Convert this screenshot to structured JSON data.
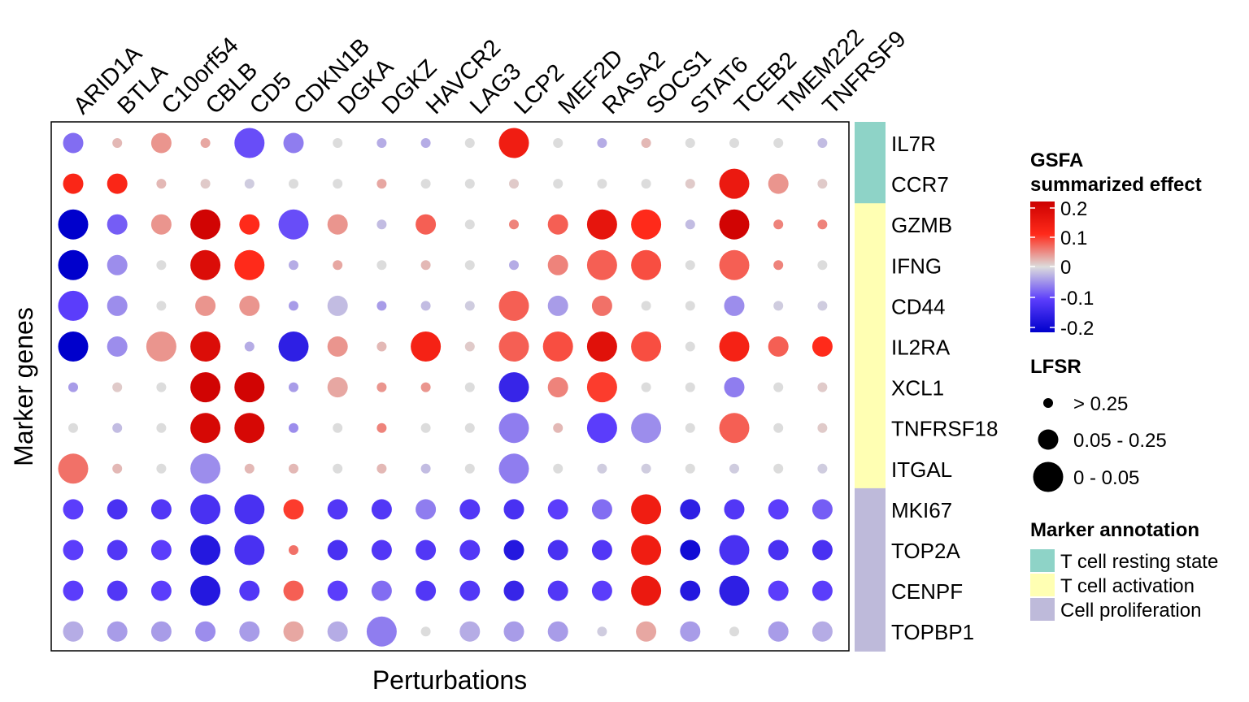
{
  "chart_data": {
    "type": "dot-heatmap",
    "xlabel": "Perturbations",
    "ylabel": "Marker genes",
    "perturbations": [
      "ARID1A",
      "BTLA",
      "C10orf54",
      "CBLB",
      "CD5",
      "CDKN1B",
      "DGKA",
      "DGKZ",
      "HAVCR2",
      "LAG3",
      "LCP2",
      "MEF2D",
      "RASA2",
      "SOCS1",
      "STAT6",
      "TCEB2",
      "TMEM222",
      "TNFRSF9"
    ],
    "marker_genes": [
      "IL7R",
      "CCR7",
      "GZMB",
      "IFNG",
      "CD44",
      "IL2RA",
      "XCL1",
      "TNFRSF18",
      "ITGAL",
      "MKI67",
      "TOP2A",
      "CENPF",
      "TOPBP1"
    ],
    "marker_annotation": [
      "T cell resting state",
      "T cell resting state",
      "T cell activation",
      "T cell activation",
      "T cell activation",
      "T cell activation",
      "T cell activation",
      "T cell activation",
      "T cell activation",
      "Cell proliferation",
      "Cell proliferation",
      "Cell proliferation",
      "Cell proliferation"
    ],
    "effect": [
      [
        -0.07,
        0.02,
        0.04,
        0.03,
        -0.09,
        -0.06,
        0,
        -0.03,
        -0.03,
        0,
        0.13,
        0,
        -0.03,
        0.02,
        0,
        0,
        0,
        -0.02
      ],
      [
        0.11,
        0.11,
        0.02,
        0.01,
        -0.01,
        0,
        0,
        0.03,
        0,
        0,
        0.01,
        0,
        0,
        0,
        0.01,
        0.14,
        0.04,
        0.01
      ],
      [
        -0.2,
        -0.08,
        0.04,
        0.19,
        0.1,
        -0.09,
        0.04,
        -0.02,
        0.07,
        0,
        0.05,
        0.07,
        0.15,
        0.1,
        -0.02,
        0.19,
        0.05,
        0.05
      ],
      [
        -0.2,
        -0.05,
        0,
        0.17,
        0.1,
        -0.03,
        0.03,
        0,
        0.02,
        0,
        -0.03,
        0.05,
        0.07,
        0.08,
        0,
        0.07,
        0.05,
        0
      ],
      [
        -0.1,
        -0.05,
        0,
        0.04,
        0.04,
        -0.04,
        -0.02,
        -0.04,
        -0.02,
        -0.01,
        0.07,
        -0.04,
        0.06,
        0,
        0,
        -0.05,
        -0.01,
        -0.01
      ],
      [
        -0.2,
        -0.05,
        0.04,
        0.17,
        -0.03,
        -0.15,
        0.04,
        0.02,
        0.12,
        0.01,
        0.07,
        0.08,
        0.16,
        0.08,
        0,
        0.12,
        0.07,
        0.1
      ],
      [
        -0.04,
        0.01,
        0,
        0.19,
        0.19,
        -0.04,
        0.03,
        0.04,
        0.04,
        0,
        -0.14,
        0.05,
        0.09,
        0,
        0,
        -0.06,
        0,
        0.01
      ],
      [
        0,
        -0.02,
        0,
        0.18,
        0.18,
        -0.05,
        0,
        0.05,
        0,
        0,
        -0.06,
        0.02,
        -0.1,
        -0.05,
        0,
        0.07,
        0,
        0.01
      ],
      [
        0.06,
        0.02,
        0,
        -0.05,
        0.02,
        0.02,
        0,
        0.02,
        -0.02,
        0,
        -0.06,
        0,
        -0.01,
        -0.01,
        0,
        -0.01,
        0,
        -0.01
      ],
      [
        -0.1,
        -0.12,
        -0.11,
        -0.12,
        -0.12,
        0.09,
        -0.11,
        -0.11,
        -0.06,
        -0.11,
        -0.12,
        -0.1,
        -0.07,
        0.13,
        -0.15,
        -0.11,
        -0.1,
        -0.08
      ],
      [
        -0.1,
        -0.11,
        -0.1,
        -0.16,
        -0.12,
        0.06,
        -0.12,
        -0.11,
        -0.11,
        -0.11,
        -0.16,
        -0.12,
        -0.11,
        0.13,
        -0.18,
        -0.12,
        -0.12,
        -0.12
      ],
      [
        -0.1,
        -0.11,
        -0.1,
        -0.16,
        -0.11,
        0.07,
        -0.1,
        -0.07,
        -0.11,
        -0.11,
        -0.14,
        -0.11,
        -0.1,
        0.14,
        -0.16,
        -0.15,
        -0.1,
        -0.1
      ],
      [
        -0.03,
        -0.04,
        -0.04,
        -0.05,
        -0.04,
        0.03,
        -0.03,
        -0.06,
        0,
        -0.03,
        -0.04,
        -0.04,
        -0.01,
        0.03,
        -0.04,
        0,
        -0.04,
        -0.03
      ]
    ],
    "lfsr_category": [
      [
        1,
        0,
        1,
        0,
        2,
        1,
        0,
        0,
        0,
        0,
        2,
        0,
        0,
        0,
        0,
        0,
        0,
        0
      ],
      [
        1,
        1,
        0,
        0,
        0,
        0,
        0,
        0,
        0,
        0,
        0,
        0,
        0,
        0,
        0,
        2,
        1,
        0
      ],
      [
        2,
        1,
        1,
        2,
        1,
        2,
        1,
        0,
        1,
        0,
        0,
        1,
        2,
        2,
        0,
        2,
        0,
        0
      ],
      [
        2,
        1,
        0,
        2,
        2,
        0,
        0,
        0,
        0,
        0,
        0,
        1,
        2,
        2,
        0,
        2,
        0,
        0
      ],
      [
        2,
        1,
        0,
        1,
        1,
        0,
        1,
        0,
        0,
        0,
        2,
        1,
        1,
        0,
        0,
        1,
        0,
        0
      ],
      [
        2,
        1,
        2,
        2,
        0,
        2,
        1,
        0,
        2,
        0,
        2,
        2,
        2,
        2,
        0,
        2,
        1,
        1
      ],
      [
        0,
        0,
        0,
        2,
        2,
        0,
        1,
        0,
        0,
        0,
        2,
        1,
        2,
        0,
        0,
        1,
        0,
        0
      ],
      [
        0,
        0,
        0,
        2,
        2,
        0,
        0,
        0,
        0,
        0,
        2,
        0,
        2,
        2,
        0,
        2,
        0,
        0
      ],
      [
        2,
        0,
        0,
        2,
        0,
        0,
        0,
        0,
        0,
        0,
        2,
        0,
        0,
        0,
        0,
        0,
        0,
        0
      ],
      [
        1,
        1,
        1,
        2,
        2,
        1,
        1,
        1,
        1,
        1,
        1,
        1,
        1,
        2,
        1,
        1,
        1,
        1
      ],
      [
        1,
        1,
        1,
        2,
        2,
        0,
        1,
        1,
        1,
        1,
        1,
        1,
        1,
        2,
        1,
        2,
        1,
        1
      ],
      [
        1,
        1,
        1,
        2,
        1,
        1,
        1,
        1,
        1,
        1,
        1,
        1,
        1,
        2,
        1,
        2,
        1,
        1
      ],
      [
        1,
        1,
        1,
        1,
        1,
        1,
        1,
        2,
        0,
        1,
        1,
        1,
        0,
        1,
        1,
        0,
        1,
        1
      ]
    ],
    "color_scale": {
      "title": "GSFA\nsummarized effect",
      "ticks": [
        "0.2",
        "0.1",
        "0",
        "-0.1",
        "-0.2"
      ],
      "limits": [
        -0.2,
        0.2
      ],
      "colors": {
        "low": "#0000cc",
        "mid_low": "#5b3dfb",
        "mid": "#dcdcdc",
        "mid_high": "#ff2a1a",
        "high": "#cc0000"
      }
    },
    "size_legend": {
      "title": "LFSR",
      "labels": [
        "> 0.25",
        "0.05 - 0.25",
        "0 - 0.05"
      ]
    },
    "annotation_legend": {
      "title": "Marker annotation",
      "items": [
        {
          "label": "T cell resting state",
          "color": "#8ed3c7"
        },
        {
          "label": "T cell activation",
          "color": "#ffffb3"
        },
        {
          "label": "Cell proliferation",
          "color": "#bebada"
        }
      ]
    }
  }
}
